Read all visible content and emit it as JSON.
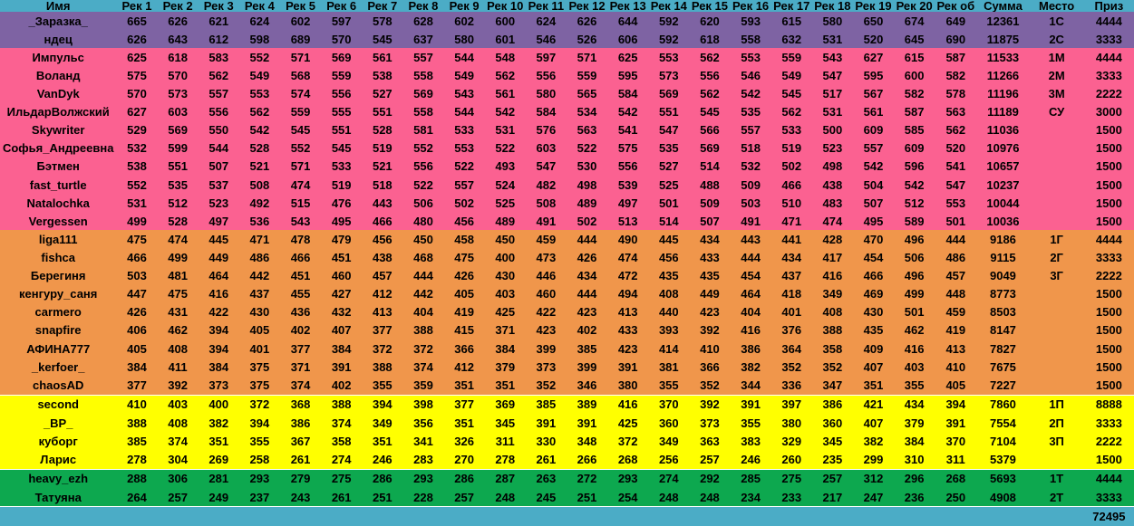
{
  "table": {
    "columns": [
      "Имя",
      "Рек 1",
      "Рек 2",
      "Рек 3",
      "Рек 4",
      "Рек 5",
      "Рек 6",
      "Рек 7",
      "Рек 8",
      "Рек 9",
      "Рек 10",
      "Рек 11",
      "Рек 12",
      "Рек 13",
      "Рек 14",
      "Рек 15",
      "Рек 16",
      "Рек 17",
      "Рек 18",
      "Рек 19",
      "Рек 20",
      "Рек об",
      "Сумма",
      "Место",
      "Приз"
    ],
    "group_colors": {
      "header": "#4BACC6",
      "purple": "#7E63A3",
      "pink": "#FB6191",
      "orange": "#F0964B",
      "yellow": "#FFFF00",
      "green": "#0DA84F",
      "total": "#4BACC6"
    },
    "text_color": "#000000",
    "rows": [
      {
        "name": "_Заразка_",
        "group": "purple",
        "recs": [
          665,
          626,
          621,
          624,
          602,
          597,
          578,
          628,
          602,
          600,
          624,
          626,
          644,
          592,
          620,
          593,
          615,
          580,
          650,
          674
        ],
        "avg": 649,
        "sum": 12361,
        "place": "1С",
        "prize": 4444
      },
      {
        "name": "ндец",
        "group": "purple",
        "recs": [
          626,
          643,
          612,
          598,
          689,
          570,
          545,
          637,
          580,
          601,
          546,
          526,
          606,
          592,
          618,
          558,
          632,
          531,
          520,
          645
        ],
        "avg": 690,
        "sum": 11875,
        "place": "2С",
        "prize": 3333
      },
      {
        "name": "Импульс",
        "group": "pink",
        "recs": [
          625,
          618,
          583,
          552,
          571,
          569,
          561,
          557,
          544,
          548,
          597,
          571,
          625,
          553,
          562,
          553,
          559,
          543,
          627,
          615
        ],
        "avg": 587,
        "sum": 11533,
        "place": "1М",
        "prize": 4444
      },
      {
        "name": "Воланд",
        "group": "pink",
        "recs": [
          575,
          570,
          562,
          549,
          568,
          559,
          538,
          558,
          549,
          562,
          556,
          559,
          595,
          573,
          556,
          546,
          549,
          547,
          595,
          600
        ],
        "avg": 582,
        "sum": 11266,
        "place": "2М",
        "prize": 3333
      },
      {
        "name": "VanDyk",
        "group": "pink",
        "recs": [
          570,
          573,
          557,
          553,
          574,
          556,
          527,
          569,
          543,
          561,
          580,
          565,
          584,
          569,
          562,
          542,
          545,
          517,
          567,
          582
        ],
        "avg": 578,
        "sum": 11196,
        "place": "3М",
        "prize": 2222
      },
      {
        "name": "ИльдарВолжский",
        "group": "pink",
        "recs": [
          627,
          603,
          556,
          562,
          559,
          555,
          551,
          558,
          544,
          542,
          584,
          534,
          542,
          551,
          545,
          535,
          562,
          531,
          561,
          587
        ],
        "avg": 563,
        "sum": 11189,
        "place": "СУ",
        "prize": 3000
      },
      {
        "name": "Skywriter",
        "group": "pink",
        "recs": [
          529,
          569,
          550,
          542,
          545,
          551,
          528,
          581,
          533,
          531,
          576,
          563,
          541,
          547,
          566,
          557,
          533,
          500,
          609,
          585
        ],
        "avg": 562,
        "sum": 11036,
        "place": "",
        "prize": 1500
      },
      {
        "name": "Софья_Андреевна",
        "group": "pink",
        "recs": [
          532,
          599,
          544,
          528,
          552,
          545,
          519,
          552,
          553,
          522,
          603,
          522,
          575,
          535,
          569,
          518,
          519,
          523,
          557,
          609
        ],
        "avg": 520,
        "sum": 10976,
        "place": "",
        "prize": 1500
      },
      {
        "name": "Бэтмен",
        "group": "pink",
        "recs": [
          538,
          551,
          507,
          521,
          571,
          533,
          521,
          556,
          522,
          493,
          547,
          530,
          556,
          527,
          514,
          532,
          502,
          498,
          542,
          596
        ],
        "avg": 541,
        "sum": 10657,
        "place": "",
        "prize": 1500
      },
      {
        "name": "fast_turtle",
        "group": "pink",
        "recs": [
          552,
          535,
          537,
          508,
          474,
          519,
          518,
          522,
          557,
          524,
          482,
          498,
          539,
          525,
          488,
          509,
          466,
          438,
          504,
          542
        ],
        "avg": 547,
        "sum": 10237,
        "place": "",
        "prize": 1500
      },
      {
        "name": "Natalochka",
        "group": "pink",
        "recs": [
          531,
          512,
          523,
          492,
          515,
          476,
          443,
          506,
          502,
          525,
          508,
          489,
          497,
          501,
          509,
          503,
          510,
          483,
          507,
          512
        ],
        "avg": 553,
        "sum": 10044,
        "place": "",
        "prize": 1500
      },
      {
        "name": "Vergessen",
        "group": "pink",
        "recs": [
          499,
          528,
          497,
          536,
          543,
          495,
          466,
          480,
          456,
          489,
          491,
          502,
          513,
          514,
          507,
          491,
          471,
          474,
          495,
          589
        ],
        "avg": 501,
        "sum": 10036,
        "place": "",
        "prize": 1500
      },
      {
        "name": "liga111",
        "group": "orange",
        "recs": [
          475,
          474,
          445,
          471,
          478,
          479,
          456,
          450,
          458,
          450,
          459,
          444,
          490,
          445,
          434,
          443,
          441,
          428,
          470,
          496
        ],
        "avg": 444,
        "sum": 9186,
        "place": "1Г",
        "prize": 4444
      },
      {
        "name": "fishca",
        "group": "orange",
        "recs": [
          466,
          499,
          449,
          486,
          466,
          451,
          438,
          468,
          475,
          400,
          473,
          426,
          474,
          456,
          433,
          444,
          434,
          417,
          454,
          506
        ],
        "avg": 486,
        "sum": 9115,
        "place": "2Г",
        "prize": 3333
      },
      {
        "name": "Берегиня",
        "group": "orange",
        "recs": [
          503,
          481,
          464,
          442,
          451,
          460,
          457,
          444,
          426,
          430,
          446,
          434,
          472,
          435,
          435,
          454,
          437,
          416,
          466,
          496
        ],
        "avg": 457,
        "sum": 9049,
        "place": "3Г",
        "prize": 2222
      },
      {
        "name": "кенгуру_саня",
        "group": "orange",
        "recs": [
          447,
          475,
          416,
          437,
          455,
          427,
          412,
          442,
          405,
          403,
          460,
          444,
          494,
          408,
          449,
          464,
          418,
          349,
          469,
          499
        ],
        "avg": 448,
        "sum": 8773,
        "place": "",
        "prize": 1500
      },
      {
        "name": "carmero",
        "group": "orange",
        "recs": [
          426,
          431,
          422,
          430,
          436,
          432,
          413,
          404,
          419,
          425,
          422,
          423,
          413,
          440,
          423,
          404,
          401,
          408,
          430,
          501
        ],
        "avg": 459,
        "sum": 8503,
        "place": "",
        "prize": 1500
      },
      {
        "name": "snapfire",
        "group": "orange",
        "recs": [
          406,
          462,
          394,
          405,
          402,
          407,
          377,
          388,
          415,
          371,
          423,
          402,
          433,
          393,
          392,
          416,
          376,
          388,
          435,
          462
        ],
        "avg": 419,
        "sum": 8147,
        "place": "",
        "prize": 1500
      },
      {
        "name": "АФИНА777",
        "group": "orange",
        "recs": [
          405,
          408,
          394,
          401,
          377,
          384,
          372,
          372,
          366,
          384,
          399,
          385,
          423,
          414,
          410,
          386,
          364,
          358,
          409,
          416
        ],
        "avg": 413,
        "sum": 7827,
        "place": "",
        "prize": 1500
      },
      {
        "name": "_kerfoer_",
        "group": "orange",
        "recs": [
          384,
          411,
          384,
          375,
          371,
          391,
          388,
          374,
          412,
          379,
          373,
          399,
          391,
          381,
          366,
          382,
          352,
          352,
          407,
          403
        ],
        "avg": 410,
        "sum": 7675,
        "place": "",
        "prize": 1500
      },
      {
        "name": "chaosAD",
        "group": "orange",
        "recs": [
          377,
          392,
          373,
          375,
          374,
          402,
          355,
          359,
          351,
          351,
          352,
          346,
          380,
          355,
          352,
          344,
          336,
          347,
          351,
          355
        ],
        "avg": 405,
        "sum": 7227,
        "place": "",
        "prize": 1500
      },
      {
        "name": "second",
        "group": "yellow",
        "recs": [
          410,
          403,
          400,
          372,
          368,
          388,
          394,
          398,
          377,
          369,
          385,
          389,
          416,
          370,
          392,
          391,
          397,
          386,
          421,
          434
        ],
        "avg": 394,
        "sum": 7860,
        "place": "1П",
        "prize": 8888
      },
      {
        "name": "_ВР_",
        "group": "yellow",
        "recs": [
          388,
          408,
          382,
          394,
          386,
          374,
          349,
          356,
          351,
          345,
          391,
          391,
          425,
          360,
          373,
          355,
          380,
          360,
          407,
          379
        ],
        "avg": 391,
        "sum": 7554,
        "place": "2П",
        "prize": 3333
      },
      {
        "name": "куборг",
        "group": "yellow",
        "recs": [
          385,
          374,
          351,
          355,
          367,
          358,
          351,
          341,
          326,
          311,
          330,
          348,
          372,
          349,
          363,
          383,
          329,
          345,
          382,
          384
        ],
        "avg": 370,
        "sum": 7104,
        "place": "3П",
        "prize": 2222
      },
      {
        "name": "Ларис",
        "group": "yellow",
        "recs": [
          278,
          304,
          269,
          258,
          261,
          274,
          246,
          283,
          270,
          278,
          261,
          266,
          268,
          256,
          257,
          246,
          260,
          235,
          299,
          310
        ],
        "avg": 311,
        "sum": 5379,
        "place": "",
        "prize": 1500
      },
      {
        "name": "heavy_ezh",
        "group": "green",
        "recs": [
          288,
          306,
          281,
          293,
          279,
          275,
          286,
          293,
          286,
          287,
          263,
          272,
          293,
          274,
          292,
          285,
          275,
          257,
          312,
          296
        ],
        "avg": 268,
        "sum": 5693,
        "place": "1Т",
        "prize": 4444
      },
      {
        "name": "Татуяна",
        "group": "green",
        "recs": [
          264,
          257,
          249,
          237,
          243,
          261,
          251,
          228,
          257,
          248,
          245,
          251,
          254,
          248,
          248,
          234,
          233,
          217,
          247,
          236
        ],
        "avg": 250,
        "sum": 4908,
        "place": "2Т",
        "prize": 3333
      }
    ],
    "total_row": {
      "grand_total": "72495"
    }
  }
}
